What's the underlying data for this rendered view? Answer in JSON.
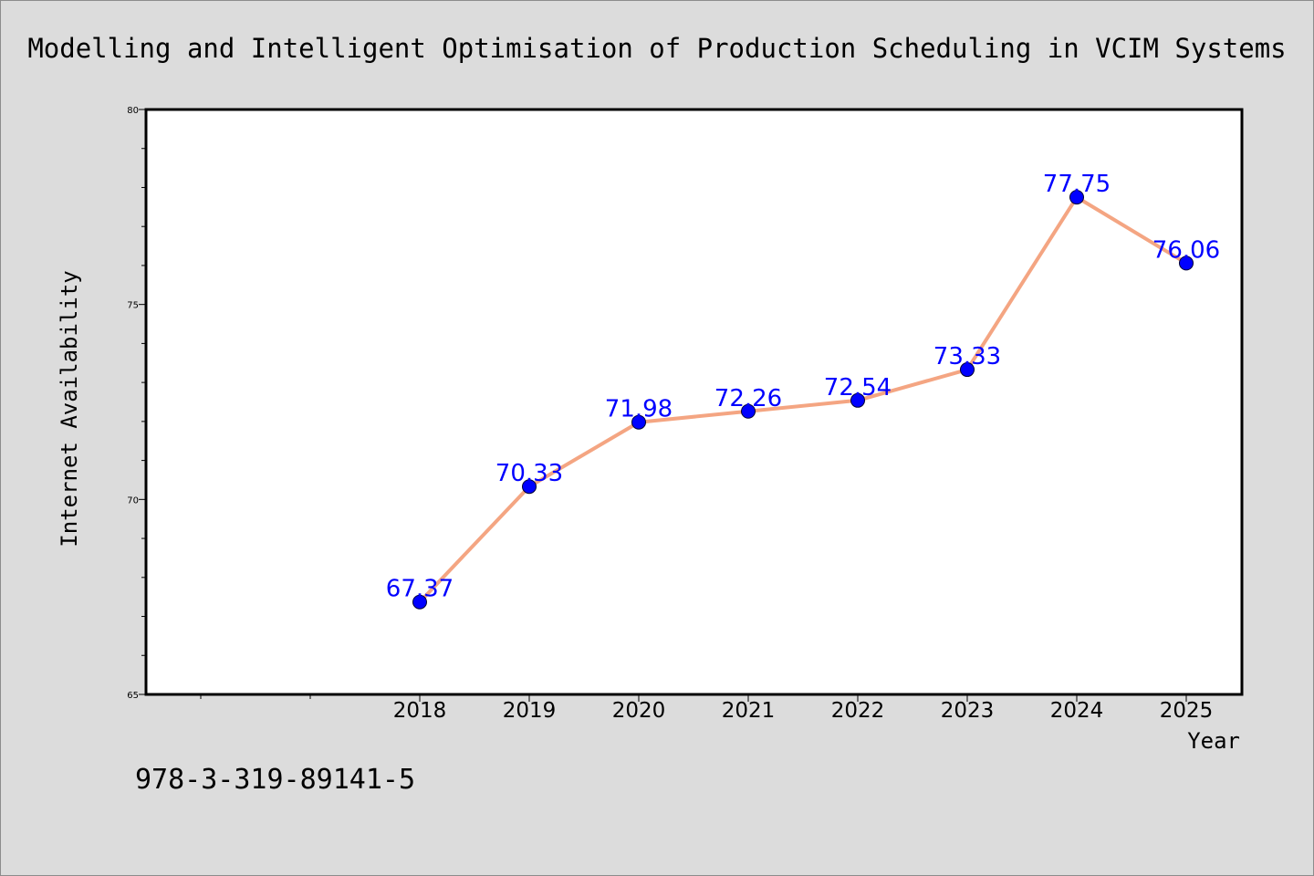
{
  "chart_data": {
    "type": "line",
    "title": "Modelling and Intelligent Optimisation of Production Scheduling in VCIM Systems",
    "xlabel": "Year",
    "ylabel": "Internet Availability",
    "categories": [
      "2018",
      "2019",
      "2020",
      "2021",
      "2022",
      "2023",
      "2024",
      "2025"
    ],
    "series": [
      {
        "values": [
          67.37,
          70.33,
          71.98,
          72.26,
          72.54,
          73.33,
          77.75,
          76.06
        ],
        "data_labels": [
          "67.37",
          "70.33",
          "71.98",
          "72.26",
          "72.54",
          "73.33",
          "77.75",
          "76.06"
        ]
      }
    ],
    "ylim": [
      65,
      80
    ],
    "yticks": [
      65,
      70,
      75,
      80
    ],
    "ytick_labels": [
      "65",
      "70",
      "75",
      "80"
    ],
    "grid": false,
    "legend": "none",
    "colors": {
      "line": "#f4a582",
      "marker": "#0000ff",
      "data_label": "#0000ff",
      "plot_background": "#ffffff",
      "figure_background": "#dcdcdc"
    }
  },
  "footer": {
    "isbn": "978-3-319-89141-5"
  }
}
